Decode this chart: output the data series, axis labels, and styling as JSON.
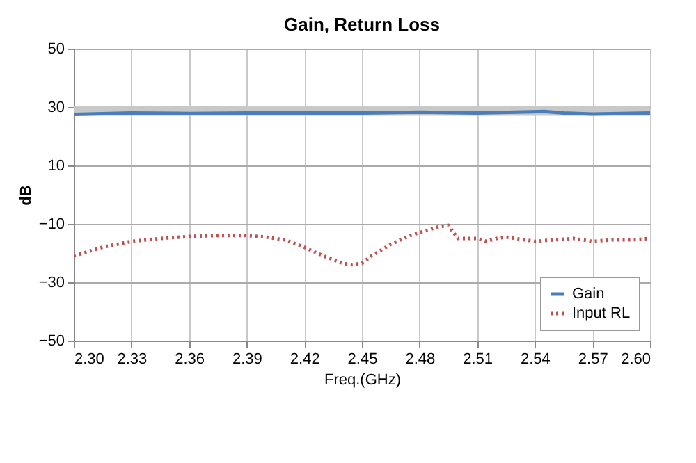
{
  "chart_data": {
    "type": "line",
    "title": "Gain, Return Loss",
    "xlabel": "Freq.(GHz)",
    "ylabel": "dB",
    "xlim": [
      2.3,
      2.6
    ],
    "xticks": [
      {
        "value": 2.3,
        "label": "2.30"
      },
      2.33,
      2.36,
      2.39,
      2.42,
      2.45,
      2.48,
      2.51,
      2.54,
      2.57,
      {
        "value": 2.6,
        "label": "2.60"
      }
    ],
    "ylim": [
      -50,
      50
    ],
    "yticks": [
      -50,
      -30,
      -10,
      10,
      30,
      50
    ],
    "grid": true,
    "legend": "bottom right",
    "bands": [
      {
        "axis": "y",
        "from": 27,
        "to": 30.5,
        "color": "#c8c8c8"
      }
    ],
    "series": [
      {
        "name": "Gain",
        "color": "#4a7ebb",
        "line_style": "solid",
        "x": [
          2.3,
          2.33,
          2.36,
          2.39,
          2.42,
          2.45,
          2.48,
          2.51,
          2.53,
          2.545,
          2.555,
          2.57,
          2.585,
          2.6
        ],
        "values": [
          27.5,
          28,
          27.8,
          28,
          28,
          28,
          28.3,
          28,
          28.3,
          28.5,
          28,
          27.6,
          27.8,
          28
        ]
      },
      {
        "name": "Input RL",
        "color": "#c0504d",
        "line_style": "dotted",
        "x": [
          2.3,
          2.315,
          2.33,
          2.345,
          2.36,
          2.375,
          2.39,
          2.4,
          2.41,
          2.42,
          2.43,
          2.44,
          2.445,
          2.45,
          2.455,
          2.465,
          2.475,
          2.485,
          2.49,
          2.495,
          2.5,
          2.505,
          2.51,
          2.515,
          2.52,
          2.525,
          2.54,
          2.55,
          2.56,
          2.57,
          2.58,
          2.59,
          2.6
        ],
        "values": [
          -21,
          -18,
          -16,
          -15,
          -14.3,
          -14,
          -14,
          -14.5,
          -15.5,
          -18,
          -21,
          -23.5,
          -24,
          -23.5,
          -21,
          -17,
          -14,
          -12,
          -11,
          -10.5,
          -15,
          -15,
          -15,
          -16,
          -15,
          -14.5,
          -16,
          -15.5,
          -15,
          -16,
          -15.5,
          -15.5,
          -15
        ]
      }
    ]
  }
}
